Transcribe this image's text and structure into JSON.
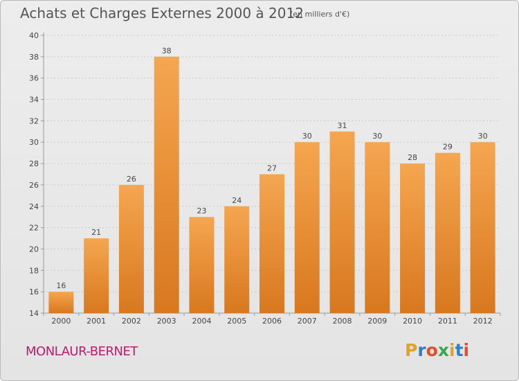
{
  "chart_data": {
    "type": "bar",
    "title": "Achats et Charges Externes 2000 à 2012",
    "unit_note": "(en milliers d'€)",
    "categories": [
      "2000",
      "2001",
      "2002",
      "2003",
      "2004",
      "2005",
      "2006",
      "2007",
      "2008",
      "2009",
      "2010",
      "2011",
      "2012"
    ],
    "values": [
      16,
      21,
      26,
      38,
      23,
      24,
      27,
      30,
      31,
      30,
      28,
      29,
      30
    ],
    "ylim": [
      14,
      40
    ],
    "yticks": [
      14,
      16,
      18,
      20,
      22,
      24,
      26,
      28,
      30,
      32,
      34,
      36,
      38,
      40
    ],
    "xlabel": "",
    "ylabel": "",
    "grid": true,
    "bar_color_light": "#f5a650",
    "bar_color_dark": "#d8781f"
  },
  "footer": {
    "location": "MONLAUR-BERNET",
    "brand": "Proxiti",
    "brand_colors": [
      "#e8a020",
      "#2f80c8",
      "#e84a2a",
      "#3aa84a",
      "#e8a020",
      "#2f80c8",
      "#e84a2a"
    ]
  }
}
